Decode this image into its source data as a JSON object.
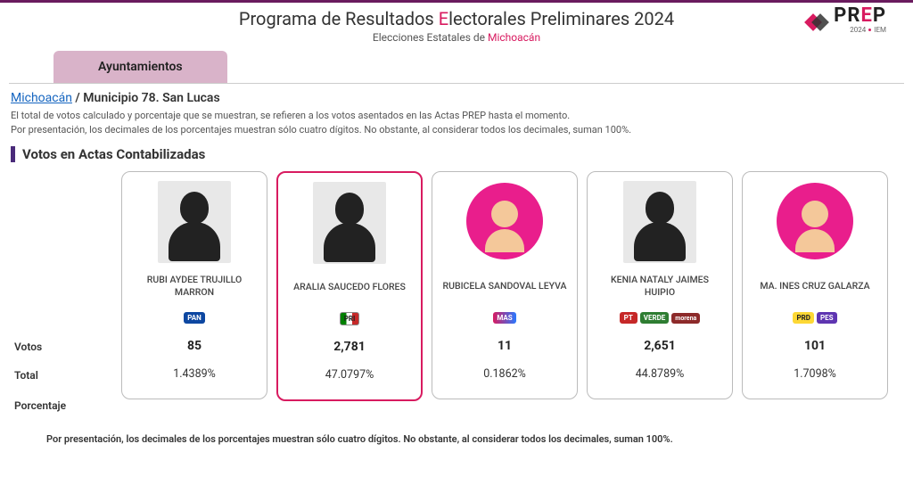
{
  "header": {
    "title_pre": "Programa de Resultados ",
    "title_E": "E",
    "title_post": "lectorales Preliminares 2024",
    "subtitle_pre": "Elecciones Estatales de ",
    "subtitle_state": "Michoacán",
    "logo_text_pre": "PR",
    "logo_text_E": "E",
    "logo_text_post": "P",
    "logo_year": "2024",
    "logo_org": "IEM"
  },
  "tab": {
    "label": "Ayuntamientos"
  },
  "breadcrumb": {
    "link": "Michoacán",
    "sep": " / ",
    "current": "Municipio 78. San Lucas"
  },
  "note": {
    "line1": "El total de votos calculado y porcentaje que se muestran, se refieren a los votos asentados en las Actas PREP hasta el momento.",
    "line2": "Por presentación, los decimales de los porcentajes muestran sólo cuatro dígitos. No obstante, al considerar todos los decimales, suman 100%."
  },
  "section_title": "Votos en Actas Contabilizadas",
  "row_labels": {
    "votos": "Votos",
    "total": "Total",
    "porcentaje": "Porcentaje"
  },
  "candidates": [
    {
      "name": "RUBI AYDEE TRUJILLO MARRON",
      "has_photo": true,
      "parties": [
        "PAN"
      ],
      "total": "85",
      "pct": "1.4389%",
      "winner": false
    },
    {
      "name": "ARALIA SAUCEDO FLORES",
      "has_photo": true,
      "parties": [
        "PRI"
      ],
      "total": "2,781",
      "pct": "47.0797%",
      "winner": true
    },
    {
      "name": "RUBICELA SANDOVAL LEYVA",
      "has_photo": false,
      "parties": [
        "MAS"
      ],
      "total": "11",
      "pct": "0.1862%",
      "winner": false
    },
    {
      "name": "KENIA NATALY JAIMES HUIPIO",
      "has_photo": true,
      "parties": [
        "PT",
        "VERDE",
        "morena"
      ],
      "total": "2,651",
      "pct": "44.8789%",
      "winner": false
    },
    {
      "name": "MA. INES CRUZ GALARZA",
      "has_photo": false,
      "parties": [
        "PRD",
        "PES"
      ],
      "total": "101",
      "pct": "1.7098%",
      "winner": false
    }
  ],
  "footer_note": "Por presentación, los decimales de los porcentajes muestran sólo cuatro dígitos. No obstante, al considerar todos los decimales, suman 100%.",
  "party_classes": {
    "PAN": "p-pan",
    "PRI": "p-pri",
    "MAS": "p-mas",
    "PT": "p-pt",
    "VERDE": "p-verde",
    "morena": "p-morena",
    "PRD": "p-prd",
    "PES": "p-pes"
  }
}
